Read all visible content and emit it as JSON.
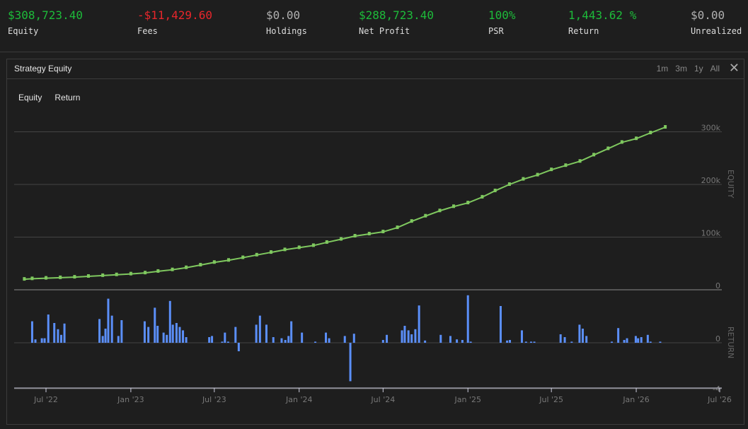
{
  "stats": [
    {
      "value": "$308,723.40",
      "label": "Equity",
      "color": "#1dbb3a"
    },
    {
      "value": "-$11,429.60",
      "label": "Fees",
      "color": "#e8262b"
    },
    {
      "value": "$0.00",
      "label": "Holdings",
      "color": "#b0b0b0"
    },
    {
      "value": "$288,723.40",
      "label": "Net Profit",
      "color": "#1dbb3a"
    },
    {
      "value": "100%",
      "label": "PSR",
      "color": "#1dbb3a"
    },
    {
      "value": "1,443.62 %",
      "label": "Return",
      "color": "#1dbb3a"
    },
    {
      "value": "$0.00",
      "label": "Unrealized",
      "color": "#b0b0b0"
    }
  ],
  "panel": {
    "title": "Strategy Equity",
    "ranges": [
      "1m",
      "3m",
      "1y",
      "All"
    ],
    "close_icon": "close-icon",
    "legend": [
      "Equity",
      "Return"
    ]
  },
  "chart_data": {
    "type": "line",
    "x_ticks": [
      "Jul '22",
      "Jan '23",
      "Jul '23",
      "Jan '24",
      "Jul '24",
      "Jan '25",
      "Jul '25",
      "Jan '26",
      "Jul '26"
    ],
    "x_tick_dates": [
      "2022-07-01",
      "2023-01-01",
      "2023-07-01",
      "2024-01-01",
      "2024-07-01",
      "2025-01-01",
      "2025-07-01",
      "2026-01-01",
      "2026-07-01"
    ],
    "equity": {
      "ylabel": "EQUITY",
      "yticks": [
        "0",
        "100k",
        "200k",
        "300k"
      ],
      "ylim": [
        0,
        300000
      ],
      "color": "#7fc85f",
      "points": [
        [
          "2022-05-15",
          20000
        ],
        [
          "2022-06-01",
          21000
        ],
        [
          "2022-07-01",
          22000
        ],
        [
          "2022-08-01",
          23000
        ],
        [
          "2022-09-01",
          24000
        ],
        [
          "2022-10-01",
          25500
        ],
        [
          "2022-11-01",
          27000
        ],
        [
          "2022-12-01",
          28500
        ],
        [
          "2023-01-01",
          30000
        ],
        [
          "2023-02-01",
          32000
        ],
        [
          "2023-03-01",
          35000
        ],
        [
          "2023-04-01",
          38000
        ],
        [
          "2023-05-01",
          42000
        ],
        [
          "2023-06-01",
          47000
        ],
        [
          "2023-07-01",
          52000
        ],
        [
          "2023-08-01",
          56000
        ],
        [
          "2023-09-01",
          61000
        ],
        [
          "2023-10-01",
          66000
        ],
        [
          "2023-11-01",
          71000
        ],
        [
          "2023-12-01",
          76000
        ],
        [
          "2024-01-01",
          80000
        ],
        [
          "2024-02-01",
          84000
        ],
        [
          "2024-03-01",
          90000
        ],
        [
          "2024-04-01",
          96000
        ],
        [
          "2024-05-01",
          102000
        ],
        [
          "2024-06-01",
          106000
        ],
        [
          "2024-07-01",
          110000
        ],
        [
          "2024-08-01",
          118000
        ],
        [
          "2024-09-01",
          130000
        ],
        [
          "2024-10-01",
          140000
        ],
        [
          "2024-11-01",
          150000
        ],
        [
          "2024-12-01",
          158000
        ],
        [
          "2025-01-01",
          165000
        ],
        [
          "2025-02-01",
          176000
        ],
        [
          "2025-03-01",
          188000
        ],
        [
          "2025-04-01",
          200000
        ],
        [
          "2025-05-01",
          210000
        ],
        [
          "2025-06-01",
          218000
        ],
        [
          "2025-07-01",
          228000
        ],
        [
          "2025-08-01",
          236000
        ],
        [
          "2025-09-01",
          244000
        ],
        [
          "2025-10-01",
          256000
        ],
        [
          "2025-11-01",
          268000
        ],
        [
          "2025-12-01",
          280000
        ],
        [
          "2026-01-01",
          287000
        ],
        [
          "2026-02-01",
          298000
        ],
        [
          "2026-03-05",
          308723
        ]
      ]
    },
    "return": {
      "ylabel": "RETURN",
      "yticks": [
        "0",
        "-4"
      ],
      "ylim": [
        -4,
        4.5
      ],
      "color": "#5b8ff9",
      "bars": [
        [
          "2022-06-01",
          1.9
        ],
        [
          "2022-06-08",
          0.3
        ],
        [
          "2022-06-22",
          0.4
        ],
        [
          "2022-06-28",
          0.4
        ],
        [
          "2022-07-06",
          2.5
        ],
        [
          "2022-07-19",
          1.75
        ],
        [
          "2022-07-27",
          1.2
        ],
        [
          "2022-08-03",
          0.7
        ],
        [
          "2022-08-10",
          1.7
        ],
        [
          "2022-10-25",
          2.1
        ],
        [
          "2022-11-01",
          0.6
        ],
        [
          "2022-11-07",
          1.25
        ],
        [
          "2022-11-13",
          3.9
        ],
        [
          "2022-11-21",
          2.4
        ],
        [
          "2022-12-05",
          0.6
        ],
        [
          "2022-12-12",
          2.0
        ],
        [
          "2023-01-31",
          1.9
        ],
        [
          "2023-02-08",
          1.4
        ],
        [
          "2023-02-22",
          3.1
        ],
        [
          "2023-02-28",
          1.5
        ],
        [
          "2023-03-13",
          0.9
        ],
        [
          "2023-03-20",
          0.7
        ],
        [
          "2023-03-27",
          3.7
        ],
        [
          "2023-04-02",
          1.6
        ],
        [
          "2023-04-10",
          1.75
        ],
        [
          "2023-04-17",
          1.4
        ],
        [
          "2023-04-24",
          1.1
        ],
        [
          "2023-05-01",
          0.5
        ],
        [
          "2023-06-20",
          0.5
        ],
        [
          "2023-06-26",
          0.6
        ],
        [
          "2023-07-18",
          0.1
        ],
        [
          "2023-07-24",
          0.9
        ],
        [
          "2023-07-31",
          0.1
        ],
        [
          "2023-08-16",
          1.4
        ],
        [
          "2023-08-23",
          -0.75
        ],
        [
          "2023-09-30",
          1.6
        ],
        [
          "2023-10-08",
          2.4
        ],
        [
          "2023-10-22",
          1.6
        ],
        [
          "2023-11-06",
          0.5
        ],
        [
          "2023-11-24",
          0.4
        ],
        [
          "2023-12-02",
          0.25
        ],
        [
          "2023-12-09",
          0.6
        ],
        [
          "2023-12-15",
          1.9
        ],
        [
          "2024-01-07",
          0.9
        ],
        [
          "2024-02-05",
          0.1
        ],
        [
          "2024-02-28",
          0.9
        ],
        [
          "2024-03-06",
          0.4
        ],
        [
          "2024-04-09",
          0.6
        ],
        [
          "2024-04-21",
          -3.4
        ],
        [
          "2024-04-29",
          0.8
        ],
        [
          "2024-07-01",
          0.25
        ],
        [
          "2024-07-09",
          0.7
        ],
        [
          "2024-08-11",
          1.1
        ],
        [
          "2024-08-17",
          1.5
        ],
        [
          "2024-08-25",
          1.1
        ],
        [
          "2024-09-01",
          0.75
        ],
        [
          "2024-09-09",
          1.2
        ],
        [
          "2024-09-17",
          3.3
        ],
        [
          "2024-09-30",
          0.2
        ],
        [
          "2024-11-03",
          0.7
        ],
        [
          "2024-11-24",
          0.6
        ],
        [
          "2024-12-08",
          0.3
        ],
        [
          "2024-12-20",
          0.25
        ],
        [
          "2025-01-01",
          4.2
        ],
        [
          "2025-01-07",
          0.1
        ],
        [
          "2025-03-13",
          3.25
        ],
        [
          "2025-03-27",
          0.2
        ],
        [
          "2025-04-02",
          0.25
        ],
        [
          "2025-04-28",
          1.1
        ],
        [
          "2025-05-07",
          0.1
        ],
        [
          "2025-05-18",
          0.1
        ],
        [
          "2025-05-25",
          0.1
        ],
        [
          "2025-07-21",
          0.75
        ],
        [
          "2025-07-30",
          0.5
        ],
        [
          "2025-08-14",
          0.1
        ],
        [
          "2025-08-31",
          1.6
        ],
        [
          "2025-09-07",
          1.25
        ],
        [
          "2025-09-15",
          0.6
        ],
        [
          "2025-11-09",
          0.1
        ],
        [
          "2025-11-23",
          1.3
        ],
        [
          "2025-12-06",
          0.25
        ],
        [
          "2025-12-12",
          0.4
        ],
        [
          "2025-12-31",
          0.6
        ],
        [
          "2026-01-05",
          0.4
        ],
        [
          "2026-01-12",
          0.5
        ],
        [
          "2026-01-26",
          0.7
        ],
        [
          "2026-02-01",
          0.1
        ],
        [
          "2026-02-22",
          0.1
        ]
      ]
    }
  }
}
